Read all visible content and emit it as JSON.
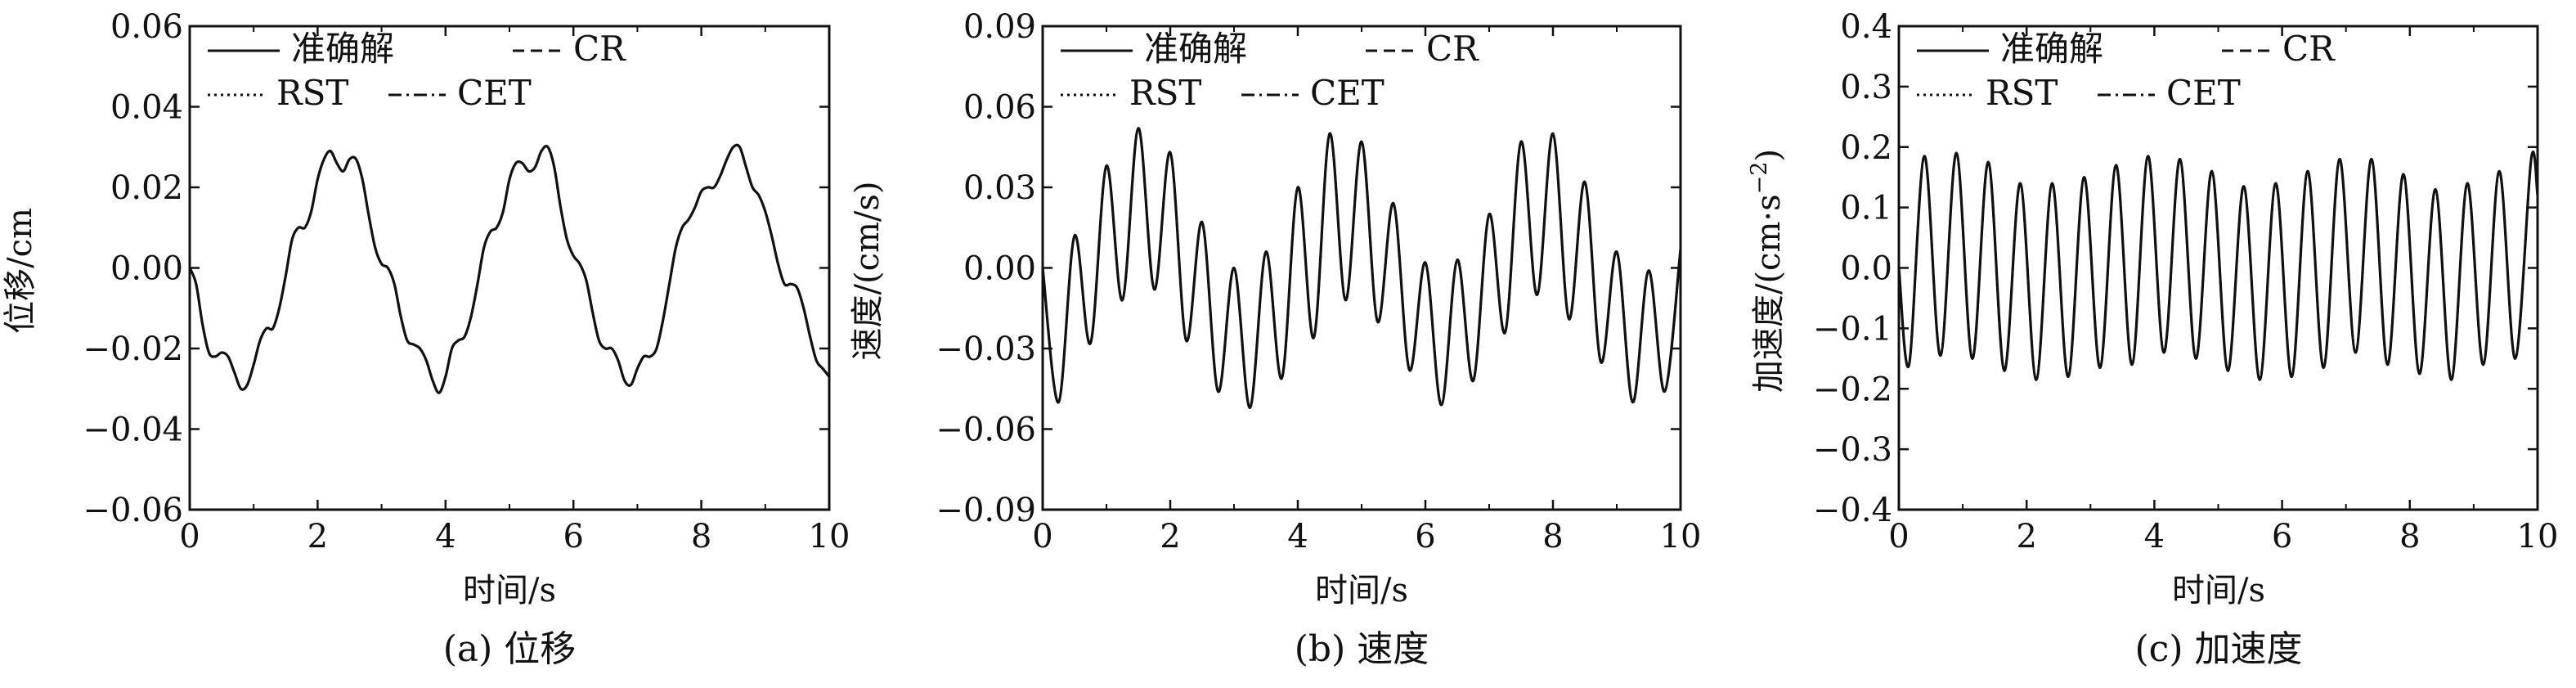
{
  "colors": {
    "line": "#111111",
    "axis": "#111111",
    "background": "#ffffff"
  },
  "chart_data": [
    {
      "type": "line",
      "caption": "(a) 位移",
      "xlabel": "时间/s",
      "ylabel": "位移/cm",
      "xlim": [
        0,
        10
      ],
      "ylim": [
        -0.06,
        0.06
      ],
      "xticks": [
        0,
        2,
        4,
        6,
        8,
        10
      ],
      "yticks": [
        -0.06,
        -0.04,
        -0.02,
        0.0,
        0.02,
        0.04,
        0.06
      ],
      "ytick_labels": [
        "−0.06",
        "−0.04",
        "−0.02",
        "0.00",
        "0.02",
        "0.04",
        "0.06"
      ],
      "grid": false,
      "legend_position": "top-left",
      "legend": [
        "准确解",
        "CR",
        "RST",
        "CET"
      ],
      "series": [
        {
          "name": "准确解",
          "style": "solid",
          "x": [
            0,
            0.1,
            0.2,
            0.3,
            0.4,
            0.5,
            0.6,
            0.7,
            0.8,
            0.9,
            1.0,
            1.1,
            1.2,
            1.3,
            1.4,
            1.5,
            1.6,
            1.7,
            1.8,
            1.9,
            2.0,
            2.1,
            2.2,
            2.3,
            2.4,
            2.5,
            2.6,
            2.7,
            2.8,
            2.9,
            3.0,
            3.1,
            3.2,
            3.3,
            3.4,
            3.5,
            3.6,
            3.7,
            3.8,
            3.9,
            4.0,
            4.1,
            4.2,
            4.3,
            4.4,
            4.5,
            4.6,
            4.7,
            4.8,
            4.9,
            5.0,
            5.1,
            5.2,
            5.3,
            5.4,
            5.5,
            5.6,
            5.7,
            5.8,
            5.9,
            6.0,
            6.1,
            6.2,
            6.3,
            6.4,
            6.5,
            6.6,
            6.7,
            6.8,
            6.9,
            7.0,
            7.1,
            7.2,
            7.3,
            7.4,
            7.5,
            7.6,
            7.7,
            7.8,
            7.9,
            8.0,
            8.1,
            8.2,
            8.3,
            8.4,
            8.5,
            8.6,
            8.7,
            8.8,
            8.9,
            9.0,
            9.1,
            9.2,
            9.3,
            9.4,
            9.5,
            9.6,
            9.7,
            9.8,
            9.9,
            10.0
          ],
          "y": [
            0.0,
            -0.004,
            -0.014,
            -0.021,
            -0.022,
            -0.021,
            -0.022,
            -0.026,
            -0.03,
            -0.029,
            -0.024,
            -0.018,
            -0.015,
            -0.015,
            -0.01,
            -0.002,
            0.007,
            0.01,
            0.01,
            0.014,
            0.022,
            0.027,
            0.029,
            0.026,
            0.024,
            0.027,
            0.027,
            0.022,
            0.013,
            0.005,
            0.001,
            0.0,
            -0.004,
            -0.012,
            -0.018,
            -0.019,
            -0.02,
            -0.023,
            -0.028,
            -0.031,
            -0.027,
            -0.02,
            -0.018,
            -0.017,
            -0.012,
            -0.004,
            0.005,
            0.009,
            0.01,
            0.014,
            0.022,
            0.026,
            0.026,
            0.024,
            0.025,
            0.029,
            0.03,
            0.025,
            0.015,
            0.007,
            0.003,
            0.001,
            -0.003,
            -0.011,
            -0.018,
            -0.02,
            -0.02,
            -0.023,
            -0.028,
            -0.029,
            -0.025,
            -0.022,
            -0.022,
            -0.02,
            -0.013,
            -0.004,
            0.005,
            0.01,
            0.012,
            0.015,
            0.019,
            0.02,
            0.02,
            0.023,
            0.027,
            0.03,
            0.03,
            0.025,
            0.02,
            0.018,
            0.014,
            0.008,
            0.001,
            -0.004,
            -0.004,
            -0.005,
            -0.01,
            -0.017,
            -0.023,
            -0.025,
            -0.027
          ]
        },
        {
          "name": "CR",
          "style": "dash",
          "copy_of": "准确解"
        },
        {
          "name": "RST",
          "style": "dot",
          "copy_of": "准确解"
        },
        {
          "name": "CET",
          "style": "dashdot",
          "copy_of": "准确解"
        }
      ]
    },
    {
      "type": "line",
      "caption": "(b) 速度",
      "xlabel": "时间/s",
      "ylabel": "速度/(cm/s)",
      "xlim": [
        0,
        10
      ],
      "ylim": [
        -0.09,
        0.09
      ],
      "xticks": [
        0,
        2,
        4,
        6,
        8,
        10
      ],
      "yticks": [
        -0.09,
        -0.06,
        -0.03,
        0.0,
        0.03,
        0.06,
        0.09
      ],
      "ytick_labels": [
        "−0.09",
        "−0.06",
        "−0.03",
        "0.00",
        "0.03",
        "0.06",
        "0.09"
      ],
      "grid": false,
      "legend_position": "top-left",
      "legend": [
        "准确解",
        "CR",
        "RST",
        "CET"
      ],
      "series": [
        {
          "name": "准确解",
          "style": "solid",
          "x": [
            0,
            0.25,
            0.5,
            0.75,
            1.0,
            1.25,
            1.5,
            1.75,
            2.0,
            2.25,
            2.5,
            2.75,
            3.0,
            3.25,
            3.5,
            3.75,
            4.0,
            4.25,
            4.5,
            4.75,
            5.0,
            5.25,
            5.5,
            5.75,
            6.0,
            6.25,
            6.5,
            6.75,
            7.0,
            7.25,
            7.5,
            7.75,
            8.0,
            8.25,
            8.5,
            8.75,
            9.0,
            9.25,
            9.5,
            9.75,
            10.0
          ],
          "y": [
            0.0,
            -0.05,
            0.012,
            -0.028,
            0.038,
            -0.012,
            0.052,
            -0.008,
            0.043,
            -0.027,
            0.017,
            -0.046,
            0.0,
            -0.052,
            0.006,
            -0.041,
            0.03,
            -0.026,
            0.05,
            -0.012,
            0.047,
            -0.02,
            0.024,
            -0.038,
            0.002,
            -0.051,
            0.003,
            -0.042,
            0.02,
            -0.024,
            0.047,
            -0.01,
            0.05,
            -0.019,
            0.032,
            -0.035,
            0.006,
            -0.05,
            -0.001,
            -0.046,
            0.007
          ]
        },
        {
          "name": "CR",
          "style": "dash",
          "copy_of": "准确解"
        },
        {
          "name": "RST",
          "style": "dot",
          "copy_of": "准确解"
        },
        {
          "name": "CET",
          "style": "dashdot",
          "copy_of": "准确解"
        }
      ]
    },
    {
      "type": "line",
      "caption": "(c) 加速度",
      "xlabel": "时间/s",
      "ylabel": "加速度/(cm·s",
      "ylabel_sup": "−2",
      "ylabel_end": ")",
      "xlim": [
        0,
        10
      ],
      "ylim": [
        -0.4,
        0.4
      ],
      "xticks": [
        0,
        2,
        4,
        6,
        8,
        10
      ],
      "yticks": [
        -0.4,
        -0.3,
        -0.2,
        -0.1,
        0.0,
        0.1,
        0.2,
        0.3,
        0.4
      ],
      "ytick_labels": [
        "−0.4",
        "−0.3",
        "−0.2",
        "−0.1",
        "0.0",
        "0.1",
        "0.2",
        "0.3",
        "0.4"
      ],
      "grid": false,
      "legend_position": "top-left",
      "legend": [
        "准确解",
        "CR",
        "RST",
        "CET"
      ],
      "series": [
        {
          "name": "准确解",
          "style": "solid",
          "x": [
            0,
            0.16,
            0.4,
            0.65,
            0.9,
            1.15,
            1.4,
            1.65,
            1.9,
            2.15,
            2.4,
            2.65,
            2.9,
            3.15,
            3.4,
            3.65,
            3.9,
            4.15,
            4.4,
            4.65,
            4.9,
            5.15,
            5.4,
            5.65,
            5.9,
            6.15,
            6.4,
            6.65,
            6.9,
            7.15,
            7.4,
            7.65,
            7.9,
            8.15,
            8.4,
            8.65,
            8.9,
            9.15,
            9.4,
            9.65,
            9.9,
            10.0
          ],
          "y": [
            0.0,
            -0.16,
            0.185,
            -0.145,
            0.19,
            -0.15,
            0.175,
            -0.17,
            0.14,
            -0.185,
            0.14,
            -0.18,
            0.15,
            -0.165,
            0.17,
            -0.16,
            0.185,
            -0.14,
            0.18,
            -0.15,
            0.16,
            -0.17,
            0.135,
            -0.185,
            0.14,
            -0.18,
            0.16,
            -0.165,
            0.18,
            -0.14,
            0.18,
            -0.16,
            0.155,
            -0.175,
            0.13,
            -0.185,
            0.14,
            -0.16,
            0.16,
            -0.15,
            0.18,
            0.12
          ]
        },
        {
          "name": "CR",
          "style": "dash",
          "copy_of": "准确解"
        },
        {
          "name": "RST",
          "style": "dot",
          "copy_of": "准确解"
        },
        {
          "name": "CET",
          "style": "dashdot",
          "copy_of": "准确解"
        }
      ]
    }
  ]
}
